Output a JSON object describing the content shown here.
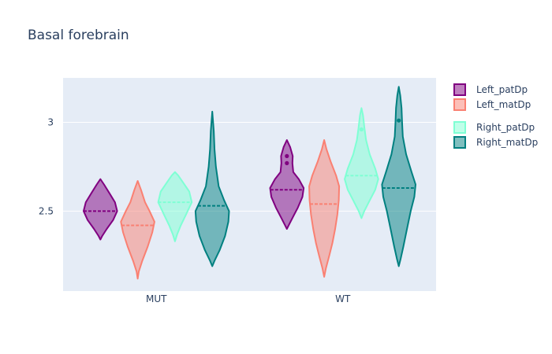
{
  "chart_data": {
    "type": "violin",
    "title": "Basal forebrain",
    "categories": [
      "MUT",
      "WT"
    ],
    "yticks": [
      2.5,
      3
    ],
    "ylim": [
      2.05,
      3.25
    ],
    "grid": true,
    "legend_position": "top-right",
    "series": [
      {
        "name": "Left_patDp",
        "color": "#800080",
        "fill": "rgba(128,0,128,0.5)",
        "violins": [
          {
            "category": "MUT",
            "mean": 2.5,
            "points": [
              [
                2.34,
                0.0
              ],
              [
                2.36,
                0.1
              ],
              [
                2.4,
                0.35
              ],
              [
                2.45,
                0.7
              ],
              [
                2.5,
                0.92
              ],
              [
                2.55,
                0.8
              ],
              [
                2.6,
                0.5
              ],
              [
                2.65,
                0.2
              ],
              [
                2.68,
                0.0
              ]
            ],
            "mean_marks": []
          },
          {
            "category": "WT",
            "mean": 2.62,
            "points": [
              [
                2.4,
                0.0
              ],
              [
                2.42,
                0.1
              ],
              [
                2.47,
                0.35
              ],
              [
                2.52,
                0.6
              ],
              [
                2.58,
                0.85
              ],
              [
                2.63,
                0.92
              ],
              [
                2.68,
                0.65
              ],
              [
                2.72,
                0.35
              ],
              [
                2.77,
                0.3
              ],
              [
                2.81,
                0.32
              ],
              [
                2.86,
                0.18
              ],
              [
                2.9,
                0.0
              ]
            ],
            "mean_marks": [
              2.77,
              2.81
            ]
          }
        ]
      },
      {
        "name": "Left_matDp",
        "color": "#fa8072",
        "fill": "rgba(250,128,114,0.5)",
        "violins": [
          {
            "category": "MUT",
            "mean": 2.42,
            "points": [
              [
                2.12,
                0.0
              ],
              [
                2.16,
                0.06
              ],
              [
                2.22,
                0.25
              ],
              [
                2.3,
                0.55
              ],
              [
                2.38,
                0.8
              ],
              [
                2.44,
                0.92
              ],
              [
                2.5,
                0.65
              ],
              [
                2.55,
                0.4
              ],
              [
                2.62,
                0.18
              ],
              [
                2.67,
                0.0
              ]
            ],
            "mean_marks": []
          },
          {
            "category": "WT",
            "mean": 2.54,
            "points": [
              [
                2.13,
                0.0
              ],
              [
                2.18,
                0.1
              ],
              [
                2.25,
                0.28
              ],
              [
                2.32,
                0.45
              ],
              [
                2.4,
                0.6
              ],
              [
                2.48,
                0.72
              ],
              [
                2.56,
                0.8
              ],
              [
                2.64,
                0.82
              ],
              [
                2.7,
                0.65
              ],
              [
                2.78,
                0.35
              ],
              [
                2.85,
                0.12
              ],
              [
                2.9,
                0.0
              ]
            ],
            "mean_marks": []
          }
        ]
      },
      {
        "name": "Right_patDp",
        "color": "#7fffd4",
        "fill": "rgba(127,255,212,0.5)",
        "violins": [
          {
            "category": "MUT",
            "mean": 2.55,
            "points": [
              [
                2.33,
                0.0
              ],
              [
                2.37,
                0.12
              ],
              [
                2.42,
                0.32
              ],
              [
                2.48,
                0.6
              ],
              [
                2.55,
                0.92
              ],
              [
                2.61,
                0.78
              ],
              [
                2.66,
                0.45
              ],
              [
                2.7,
                0.18
              ],
              [
                2.72,
                0.0
              ]
            ],
            "mean_marks": []
          },
          {
            "category": "WT",
            "mean": 2.7,
            "points": [
              [
                2.46,
                0.0
              ],
              [
                2.5,
                0.15
              ],
              [
                2.56,
                0.45
              ],
              [
                2.62,
                0.75
              ],
              [
                2.68,
                0.92
              ],
              [
                2.74,
                0.75
              ],
              [
                2.82,
                0.45
              ],
              [
                2.9,
                0.25
              ],
              [
                2.97,
                0.16
              ],
              [
                3.04,
                0.08
              ],
              [
                3.08,
                0.0
              ]
            ],
            "mean_marks": [
              2.96
            ]
          }
        ]
      },
      {
        "name": "Right_matDp",
        "color": "#008080",
        "fill": "rgba(0,128,128,0.5)",
        "violins": [
          {
            "category": "MUT",
            "mean": 2.53,
            "points": [
              [
                2.19,
                0.0
              ],
              [
                2.22,
                0.12
              ],
              [
                2.28,
                0.4
              ],
              [
                2.36,
                0.7
              ],
              [
                2.44,
                0.88
              ],
              [
                2.5,
                0.92
              ],
              [
                2.56,
                0.65
              ],
              [
                2.64,
                0.35
              ],
              [
                2.75,
                0.2
              ],
              [
                2.85,
                0.12
              ],
              [
                2.95,
                0.08
              ],
              [
                3.06,
                0.0
              ]
            ],
            "mean_marks": []
          },
          {
            "category": "WT",
            "mean": 2.63,
            "points": [
              [
                2.19,
                0.0
              ],
              [
                2.23,
                0.1
              ],
              [
                2.3,
                0.25
              ],
              [
                2.4,
                0.45
              ],
              [
                2.5,
                0.65
              ],
              [
                2.58,
                0.85
              ],
              [
                2.65,
                0.92
              ],
              [
                2.72,
                0.7
              ],
              [
                2.82,
                0.4
              ],
              [
                2.92,
                0.22
              ],
              [
                3.0,
                0.18
              ],
              [
                3.08,
                0.15
              ],
              [
                3.15,
                0.08
              ],
              [
                3.2,
                0.0
              ]
            ],
            "mean_marks": [
              3.01
            ]
          }
        ]
      }
    ]
  }
}
